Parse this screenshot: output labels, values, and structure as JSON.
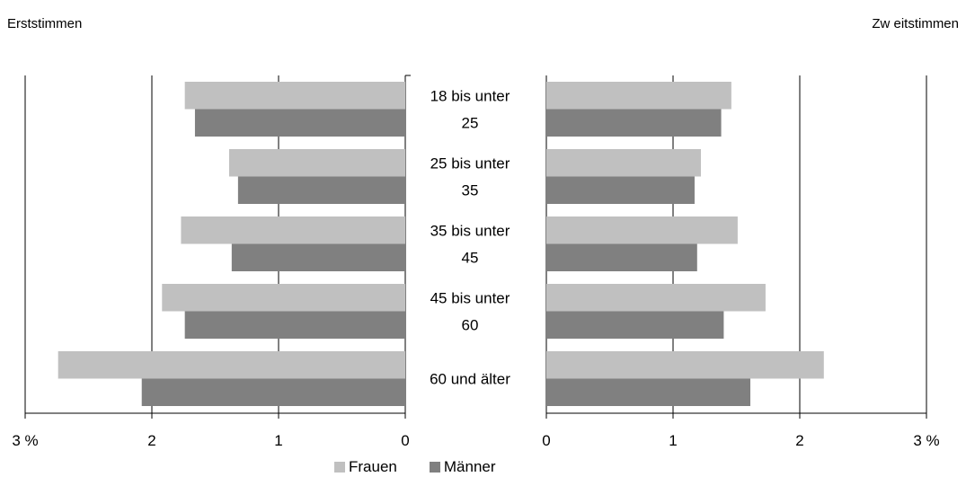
{
  "chart_data": {
    "type": "bar",
    "orientation": "horizontal",
    "layout": "butterfly",
    "categories": [
      [
        "18 bis unter",
        "25"
      ],
      [
        "25 bis unter",
        "35"
      ],
      [
        "35 bis unter",
        "45"
      ],
      [
        "45 bis unter",
        "60"
      ],
      [
        "60 und älter"
      ]
    ],
    "panels": [
      {
        "title": "Erststimmen",
        "direction": "left",
        "xlim": [
          0,
          3
        ],
        "ticks": [
          {
            "value": 3,
            "label": "3 %"
          },
          {
            "value": 2,
            "label": "2"
          },
          {
            "value": 1,
            "label": "1"
          },
          {
            "value": 0,
            "label": "0"
          }
        ],
        "series": [
          {
            "name": "Frauen",
            "values": [
              1.74,
              1.39,
              1.77,
              1.92,
              2.74
            ]
          },
          {
            "name": "Männer",
            "values": [
              1.66,
              1.32,
              1.37,
              1.74,
              2.08
            ]
          }
        ]
      },
      {
        "title": "Zw eitstimmen",
        "direction": "right",
        "xlim": [
          0,
          3
        ],
        "ticks": [
          {
            "value": 0,
            "label": "0"
          },
          {
            "value": 1,
            "label": "1"
          },
          {
            "value": 2,
            "label": "2"
          },
          {
            "value": 3,
            "label": "3 %"
          }
        ],
        "series": [
          {
            "name": "Frauen",
            "values": [
              1.46,
              1.22,
              1.51,
              1.73,
              2.19
            ]
          },
          {
            "name": "Männer",
            "values": [
              1.38,
              1.17,
              1.19,
              1.4,
              1.61
            ]
          }
        ]
      }
    ],
    "grid": true,
    "legend": {
      "placement": "bottom-center",
      "entries": [
        {
          "name": "Frauen",
          "color": "#c0c0c0"
        },
        {
          "name": "Männer",
          "color": "#808080"
        }
      ]
    },
    "colors": {
      "Frauen": "#c0c0c0",
      "Männer": "#808080"
    }
  }
}
